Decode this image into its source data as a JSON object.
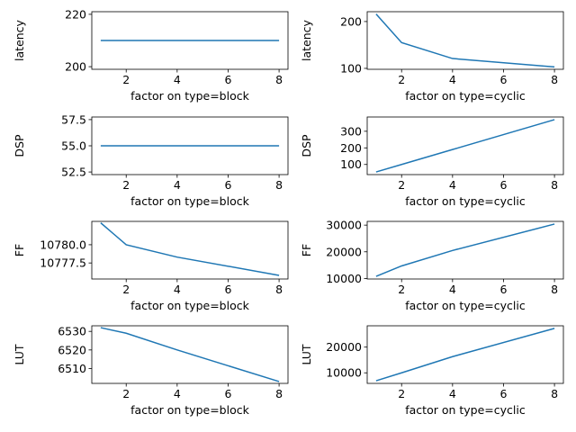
{
  "chart_data": [
    {
      "type": "line",
      "x": [
        1,
        2,
        4,
        8
      ],
      "values": [
        210,
        210,
        210,
        210
      ],
      "xlabel": "factor on type=block",
      "ylabel": "latency",
      "xlim": [
        0.65,
        8.35
      ],
      "ylim": [
        199,
        221
      ],
      "xticks": [
        2,
        4,
        6,
        8
      ],
      "yticks": [
        200,
        220
      ],
      "color": "#1f77b4"
    },
    {
      "type": "line",
      "x": [
        1,
        2,
        4,
        8
      ],
      "values": [
        216,
        155,
        121,
        103
      ],
      "xlabel": "factor on type=cyclic",
      "ylabel": "latency",
      "xlim": [
        0.65,
        8.35
      ],
      "ylim": [
        98,
        221
      ],
      "xticks": [
        2,
        4,
        6,
        8
      ],
      "yticks": [
        100,
        200
      ],
      "color": "#1f77b4"
    },
    {
      "type": "line",
      "x": [
        1,
        2,
        4,
        8
      ],
      "values": [
        55,
        55,
        55,
        55
      ],
      "xlabel": "factor on type=block",
      "ylabel": "DSP",
      "xlim": [
        0.65,
        8.35
      ],
      "ylim": [
        52.25,
        57.75
      ],
      "xticks": [
        2,
        4,
        6,
        8
      ],
      "yticks": [
        52.5,
        55.0,
        57.5
      ],
      "ytick_labels": [
        "52.5",
        "55.0",
        "57.5"
      ],
      "color": "#1f77b4"
    },
    {
      "type": "line",
      "x": [
        1,
        2,
        4,
        8
      ],
      "values": [
        55,
        100,
        190,
        370
      ],
      "xlabel": "factor on type=cyclic",
      "ylabel": "DSP",
      "xlim": [
        0.65,
        8.35
      ],
      "ylim": [
        39,
        386
      ],
      "xticks": [
        2,
        4,
        6,
        8
      ],
      "yticks": [
        100,
        200,
        300
      ],
      "color": "#1f77b4"
    },
    {
      "type": "line",
      "x": [
        1,
        2,
        4,
        8
      ],
      "values": [
        10783.0,
        10780.0,
        10778.3,
        10775.8
      ],
      "xlabel": "factor on type=block",
      "ylabel": "FF",
      "xlim": [
        0.65,
        8.35
      ],
      "ylim": [
        10775.3,
        10783.2
      ],
      "xticks": [
        2,
        4,
        6,
        8
      ],
      "yticks": [
        10777.5,
        10780.0
      ],
      "ytick_labels": [
        "10777.5",
        "10780.0"
      ],
      "color": "#1f77b4"
    },
    {
      "type": "line",
      "x": [
        1,
        2,
        4,
        8
      ],
      "values": [
        10800,
        14700,
        20500,
        30400
      ],
      "xlabel": "factor on type=cyclic",
      "ylabel": "FF",
      "xlim": [
        0.65,
        8.35
      ],
      "ylim": [
        9800,
        31400
      ],
      "xticks": [
        2,
        4,
        6,
        8
      ],
      "yticks": [
        10000,
        20000,
        30000
      ],
      "color": "#1f77b4"
    },
    {
      "type": "line",
      "x": [
        1,
        2,
        4,
        8
      ],
      "values": [
        6532,
        6529,
        6520,
        6503
      ],
      "xlabel": "factor on type=block",
      "ylabel": "LUT",
      "xlim": [
        0.65,
        8.35
      ],
      "ylim": [
        6502,
        6533
      ],
      "xticks": [
        2,
        4,
        6,
        8
      ],
      "yticks": [
        6510,
        6520,
        6530
      ],
      "color": "#1f77b4"
    },
    {
      "type": "line",
      "x": [
        1,
        2,
        4,
        8
      ],
      "values": [
        6900,
        10000,
        16300,
        27300
      ],
      "xlabel": "factor on type=cyclic",
      "ylabel": "LUT",
      "xlim": [
        0.65,
        8.35
      ],
      "ylim": [
        5880,
        28300
      ],
      "xticks": [
        2,
        4,
        6,
        8
      ],
      "yticks": [
        10000,
        20000
      ],
      "color": "#1f77b4"
    }
  ]
}
